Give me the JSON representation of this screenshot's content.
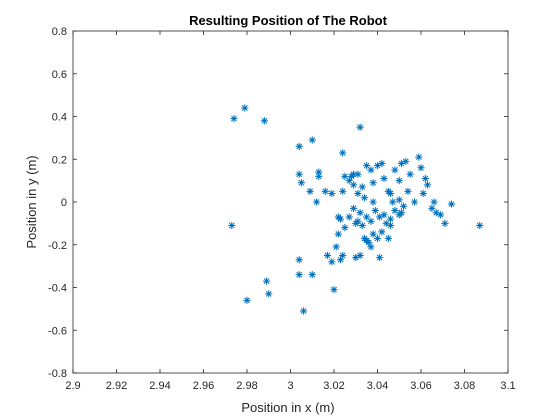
{
  "chart_data": {
    "type": "scatter",
    "title": "Resulting Position of The Robot",
    "xlabel": "Position in x (m)",
    "ylabel": "Position in y (m)",
    "xlim": [
      2.9,
      3.1
    ],
    "ylim": [
      -0.8,
      0.8
    ],
    "xticks": [
      2.9,
      2.92,
      2.94,
      2.96,
      2.98,
      3,
      3.02,
      3.04,
      3.06,
      3.08,
      3.1
    ],
    "xtick_labels": [
      "2.9",
      "2.92",
      "2.94",
      "2.96",
      "2.98",
      "3",
      "3.02",
      "3.04",
      "3.06",
      "3.08",
      "3.1"
    ],
    "yticks": [
      -0.8,
      -0.6,
      -0.4,
      -0.2,
      0,
      0.2,
      0.4,
      0.6,
      0.8
    ],
    "ytick_labels": [
      "-0.8",
      "-0.6",
      "-0.4",
      "-0.2",
      "0",
      "0.2",
      "0.4",
      "0.6",
      "0.8"
    ],
    "grid": false,
    "marker": "asterisk",
    "color": "#0072BD",
    "series": [
      {
        "x": [
          2.979,
          2.974,
          2.988,
          2.973,
          3.032,
          3.01,
          3.004,
          3.004,
          3.005,
          3.009,
          3.013,
          3.013,
          3.016,
          3.019,
          3.012,
          3.024,
          3.025,
          3.024,
          3.027,
          3.028,
          3.029,
          3.031,
          3.033,
          3.034,
          3.035,
          3.037,
          3.038,
          3.04,
          3.042,
          3.043,
          3.045,
          3.046,
          3.047,
          3.048,
          3.05,
          3.051,
          3.053,
          3.054,
          3.055,
          3.057,
          3.059,
          3.06,
          3.061,
          3.062,
          3.063,
          3.065,
          3.066,
          3.067,
          3.069,
          3.071,
          3.074,
          3.087,
          3.022,
          3.023,
          3.025,
          3.027,
          3.029,
          3.03,
          3.031,
          3.032,
          3.033,
          3.035,
          3.037,
          3.038,
          3.039,
          3.041,
          3.043,
          3.044,
          3.046,
          3.048,
          3.05,
          3.051,
          3.052,
          3.034,
          3.036,
          3.038,
          3.04,
          3.042,
          3.022,
          3.021,
          3.023,
          3.024,
          3.03,
          3.032,
          3.035,
          3.037,
          3.041,
          3.045,
          3.046,
          3.019,
          3.017,
          3.004,
          3.004,
          3.01,
          3.02,
          2.989,
          2.99,
          2.98,
          3.006,
          3.05,
          3.031,
          3.029
        ],
        "y": [
          0.44,
          0.39,
          0.38,
          -0.11,
          0.35,
          0.29,
          0.26,
          0.13,
          0.09,
          0.05,
          0.14,
          0.12,
          0.05,
          0.04,
          0.0,
          0.23,
          0.12,
          0.05,
          0.1,
          0.12,
          0.08,
          0.04,
          0.07,
          0.02,
          0.17,
          0.15,
          0.09,
          0.17,
          0.18,
          0.11,
          0.05,
          0.04,
          0.0,
          0.15,
          0.1,
          0.18,
          0.19,
          0.05,
          0.13,
          0.0,
          0.21,
          0.16,
          0.04,
          0.11,
          0.08,
          -0.03,
          0.0,
          -0.05,
          -0.06,
          -0.1,
          -0.01,
          -0.11,
          -0.07,
          -0.08,
          -0.12,
          -0.07,
          -0.03,
          -0.1,
          -0.09,
          -0.05,
          -0.11,
          -0.07,
          -0.09,
          0.0,
          -0.04,
          -0.07,
          -0.06,
          -0.1,
          -0.08,
          -0.04,
          -0.06,
          -0.05,
          -0.02,
          -0.17,
          -0.19,
          -0.15,
          -0.17,
          -0.14,
          -0.15,
          -0.21,
          -0.27,
          -0.25,
          -0.26,
          -0.25,
          -0.18,
          -0.21,
          -0.26,
          -0.17,
          -0.11,
          -0.28,
          -0.25,
          -0.27,
          -0.34,
          -0.34,
          -0.41,
          -0.37,
          -0.43,
          -0.46,
          -0.51,
          0.01,
          0.13,
          0.13
        ]
      }
    ]
  }
}
